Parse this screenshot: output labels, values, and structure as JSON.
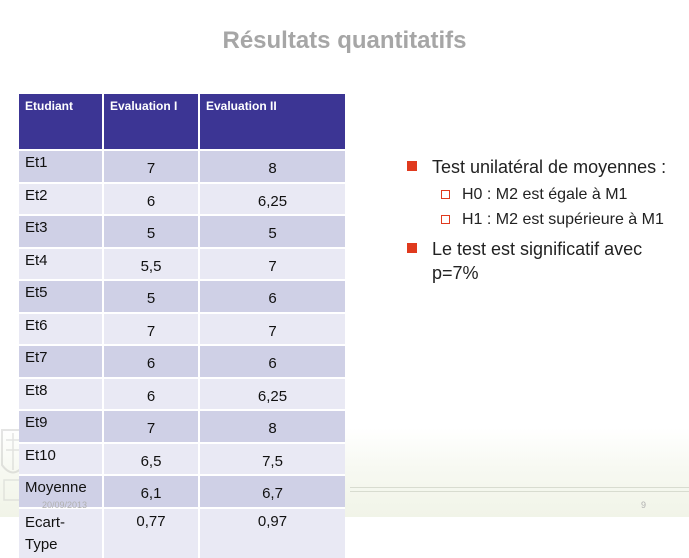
{
  "slide": {
    "title": "Résultats quantitatifs",
    "footer_date": "20/09/2013",
    "page_number": "9"
  },
  "table": {
    "headers": [
      "Etudiant",
      "Evaluation I",
      "Evaluation II"
    ],
    "rows": [
      [
        "Et1",
        "7",
        "8"
      ],
      [
        "Et2",
        "6",
        "6,25"
      ],
      [
        "Et3",
        "5",
        "5"
      ],
      [
        "Et4",
        "5,5",
        "7"
      ],
      [
        "Et5",
        "5",
        "6"
      ],
      [
        "Et6",
        "7",
        "7"
      ],
      [
        "Et7",
        "6",
        "6"
      ],
      [
        "Et8",
        "6",
        "6,25"
      ],
      [
        "Et9",
        "7",
        "8"
      ],
      [
        "Et10",
        "6,5",
        "7,5"
      ],
      [
        "Moyenne",
        "6,1",
        "6,7"
      ],
      [
        "Ecart-Type",
        "0,77",
        "0,97"
      ]
    ]
  },
  "bullets": {
    "b1": "Test unilatéral de moyennes :",
    "b1_sub": [
      "H0 : M2 est égale à M1",
      "H1 : M2 est supérieure à M1"
    ],
    "b2": "Le test est significatif avec p=7%"
  },
  "colors": {
    "header_bg": "#3c3594",
    "row_dark": "#cfd0e6",
    "row_light": "#e9e9f4",
    "bullet": "#e03a1e",
    "title": "#a6a6a6"
  }
}
